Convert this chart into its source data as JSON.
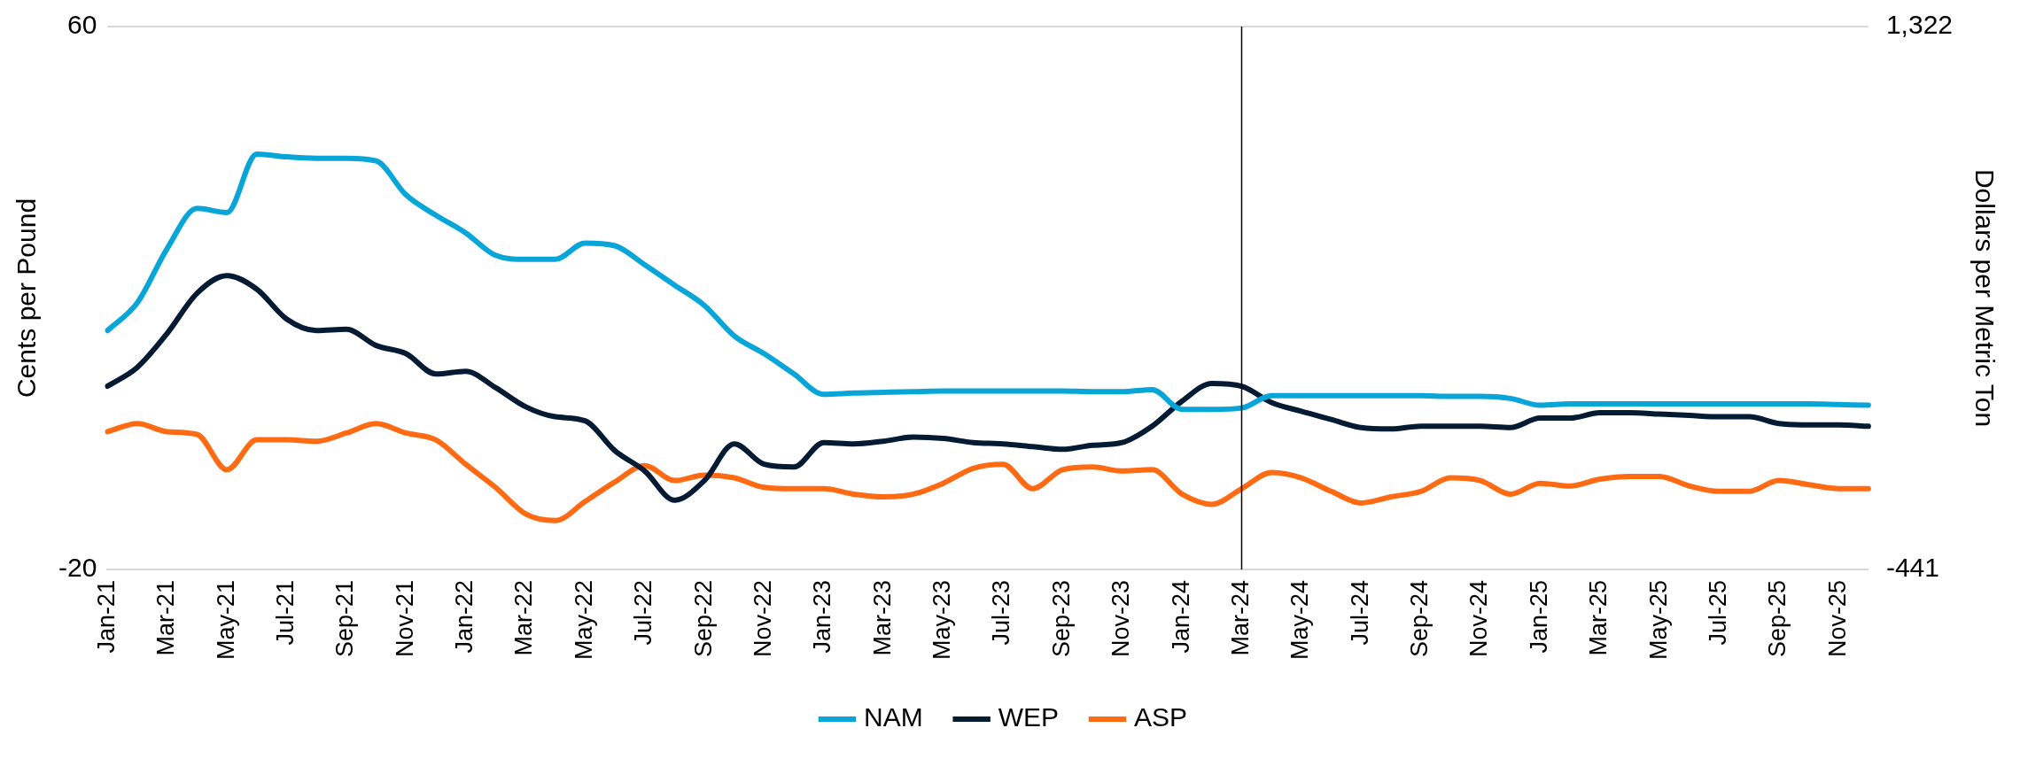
{
  "chart_data": {
    "type": "line",
    "ylabel": "Cents per Pound",
    "y2label": "Dollars per Metric Ton",
    "categories": [
      "Jan-21",
      null,
      "Mar-21",
      null,
      "May-21",
      null,
      "Jul-21",
      null,
      "Sep-21",
      null,
      "Nov-21",
      null,
      "Jan-22",
      null,
      "Mar-22",
      null,
      "May-22",
      null,
      "Jul-22",
      null,
      "Sep-22",
      null,
      "Nov-22",
      null,
      "Jan-23",
      null,
      "Mar-23",
      null,
      "May-23",
      null,
      "Jul-23",
      null,
      "Sep-23",
      null,
      "Nov-23",
      null,
      "Jan-24",
      null,
      "Mar-24",
      null,
      "May-24",
      null,
      "Jul-24",
      null,
      "Sep-24",
      null,
      "Nov-24",
      null,
      "Jan-25",
      null,
      "Mar-25",
      null,
      "May-25",
      null,
      "Jul-25",
      null,
      "Sep-25",
      null,
      "Nov-25",
      null
    ],
    "series": [
      {
        "name": "NAM",
        "color": "#08a6d8",
        "values": [
          15.2,
          19.3,
          27.3,
          33.2,
          32.6,
          41.2,
          40.8,
          40.6,
          40.6,
          40.2,
          35.2,
          32.2,
          29.6,
          26.3,
          25.7,
          25.7,
          28.1,
          27.7,
          24.9,
          21.9,
          18.9,
          14.4,
          11.8,
          8.8,
          5.8,
          6.0,
          6.1,
          6.2,
          6.3,
          6.3,
          6.3,
          6.3,
          6.3,
          6.2,
          6.2,
          6.5,
          3.6,
          3.6,
          3.8,
          5.6,
          5.6,
          5.6,
          5.6,
          5.6,
          5.6,
          5.5,
          5.5,
          5.2,
          4.2,
          4.4,
          4.4,
          4.4,
          4.4,
          4.4,
          4.4,
          4.4,
          4.4,
          4.4,
          4.3,
          4.2
        ]
      },
      {
        "name": "WEP",
        "color": "#051a33",
        "values": [
          7.0,
          9.8,
          14.8,
          20.7,
          23.3,
          21.3,
          16.9,
          15.2,
          15.4,
          13.0,
          11.8,
          8.8,
          9.2,
          6.8,
          4.0,
          2.5,
          1.9,
          -2.5,
          -5.5,
          -9.8,
          -6.9,
          -1.5,
          -4.5,
          -4.9,
          -1.3,
          -1.5,
          -1.1,
          -0.5,
          -0.7,
          -1.3,
          -1.5,
          -1.9,
          -2.3,
          -1.7,
          -1.3,
          1.1,
          4.8,
          7.4,
          7.0,
          4.6,
          3.3,
          2.1,
          0.9,
          0.7,
          1.1,
          1.1,
          1.1,
          0.9,
          2.3,
          2.3,
          3.1,
          3.1,
          2.9,
          2.7,
          2.5,
          2.5,
          1.5,
          1.3,
          1.3,
          1.1
        ]
      },
      {
        "name": "ASP",
        "color": "#ff6a13",
        "values": [
          0.3,
          1.5,
          0.3,
          -0.1,
          -5.3,
          -0.9,
          -0.9,
          -1.1,
          0.1,
          1.5,
          0.1,
          -0.9,
          -4.5,
          -7.9,
          -11.8,
          -12.8,
          -10.0,
          -7.1,
          -4.7,
          -6.9,
          -6.1,
          -6.5,
          -7.9,
          -8.1,
          -8.1,
          -8.9,
          -9.3,
          -8.9,
          -7.3,
          -5.1,
          -4.5,
          -8.1,
          -5.3,
          -4.9,
          -5.5,
          -5.3,
          -8.9,
          -10.4,
          -8.1,
          -5.7,
          -6.5,
          -8.5,
          -10.2,
          -9.3,
          -8.5,
          -6.5,
          -6.9,
          -8.9,
          -7.3,
          -7.7,
          -6.7,
          -6.3,
          -6.3,
          -7.7,
          -8.5,
          -8.5,
          -6.9,
          -7.5,
          -8.1,
          -8.1
        ]
      }
    ],
    "ylim": [
      -20,
      60
    ],
    "yticks": [
      -20,
      60
    ],
    "y2lim": [
      -441,
      1322
    ],
    "y2ticks": [
      -441,
      {
        "value": 1322,
        "label": "1,322"
      }
    ],
    "ref_lines": [
      {
        "axis": "x",
        "value": "Mar-24",
        "color": "#000000"
      }
    ],
    "legend": "bottom"
  }
}
